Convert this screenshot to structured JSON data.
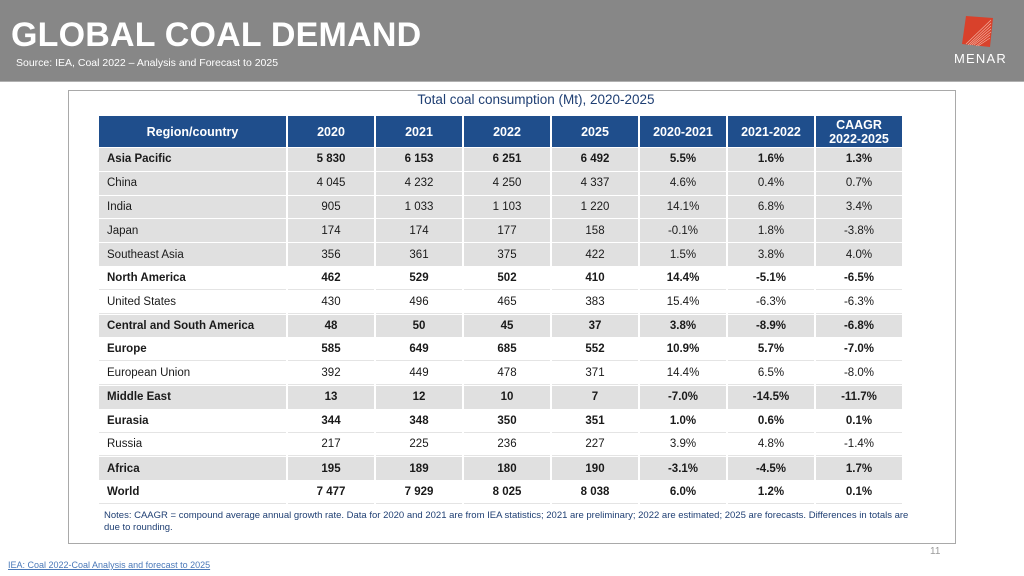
{
  "header": {
    "title": "GLOBAL COAL DEMAND",
    "subtitle": "Source: IEA, Coal 2022 – Analysis and Forecast to 2025",
    "logo_text": "MENAR",
    "logo_color": "#d9412b",
    "background_color": "#878787"
  },
  "table": {
    "title": "Total coal consumption (Mt), 2020-2025",
    "header_color": "#1f4e8c",
    "columns": [
      "Region/country",
      "2020",
      "2021",
      "2022",
      "2025",
      "2020-2021",
      "2021-2022",
      "CAAGR 2022-2025"
    ],
    "column_lines": [
      [
        "Region/country"
      ],
      [
        "2020"
      ],
      [
        "2021"
      ],
      [
        "2022"
      ],
      [
        "2025"
      ],
      [
        "2020-2021"
      ],
      [
        "2021-2022"
      ],
      [
        "CAAGR",
        "2022-2025"
      ]
    ],
    "rows": [
      {
        "cells": [
          "Asia Pacific",
          "5 830",
          "6 153",
          "6 251",
          "6 492",
          "5.5%",
          "1.6%",
          "1.3%"
        ],
        "bold": true,
        "shade": true
      },
      {
        "cells": [
          "China",
          "4 045",
          "4 232",
          "4 250",
          "4 337",
          "4.6%",
          "0.4%",
          "0.7%"
        ],
        "bold": false,
        "shade": true
      },
      {
        "cells": [
          "India",
          "905",
          "1 033",
          "1 103",
          "1 220",
          "14.1%",
          "6.8%",
          "3.4%"
        ],
        "bold": false,
        "shade": true
      },
      {
        "cells": [
          "Japan",
          "174",
          "174",
          "177",
          "158",
          "-0.1%",
          "1.8%",
          "-3.8%"
        ],
        "bold": false,
        "shade": true
      },
      {
        "cells": [
          "Southeast Asia",
          "356",
          "361",
          "375",
          "422",
          "1.5%",
          "3.8%",
          "4.0%"
        ],
        "bold": false,
        "shade": true
      },
      {
        "cells": [
          "North America",
          "462",
          "529",
          "502",
          "410",
          "14.4%",
          "-5.1%",
          "-6.5%"
        ],
        "bold": true,
        "shade": false
      },
      {
        "cells": [
          "United States",
          "430",
          "496",
          "465",
          "383",
          "15.4%",
          "-6.3%",
          "-6.3%"
        ],
        "bold": false,
        "shade": false
      },
      {
        "cells": [
          "Central and South America",
          "48",
          "50",
          "45",
          "37",
          "3.8%",
          "-8.9%",
          "-6.8%"
        ],
        "bold": true,
        "shade": true
      },
      {
        "cells": [
          "Europe",
          "585",
          "649",
          "685",
          "552",
          "10.9%",
          "5.7%",
          "-7.0%"
        ],
        "bold": true,
        "shade": false
      },
      {
        "cells": [
          "European Union",
          "392",
          "449",
          "478",
          "371",
          "14.4%",
          "6.5%",
          "-8.0%"
        ],
        "bold": false,
        "shade": false
      },
      {
        "cells": [
          "Middle East",
          "13",
          "12",
          "10",
          "7",
          "-7.0%",
          "-14.5%",
          "-11.7%"
        ],
        "bold": true,
        "shade": true
      },
      {
        "cells": [
          "Eurasia",
          "344",
          "348",
          "350",
          "351",
          "1.0%",
          "0.6%",
          "0.1%"
        ],
        "bold": true,
        "shade": false
      },
      {
        "cells": [
          "Russia",
          "217",
          "225",
          "236",
          "227",
          "3.9%",
          "4.8%",
          "-1.4%"
        ],
        "bold": false,
        "shade": false
      },
      {
        "cells": [
          "Africa",
          "195",
          "189",
          "180",
          "190",
          "-3.1%",
          "-4.5%",
          "1.7%"
        ],
        "bold": true,
        "shade": true
      },
      {
        "cells": [
          "World",
          "7 477",
          "7 929",
          "8 025",
          "8 038",
          "6.0%",
          "1.2%",
          "0.1%"
        ],
        "bold": true,
        "shade": false
      }
    ],
    "notes": "Notes: CAAGR = compound average annual growth rate. Data for 2020 and 2021 are from IEA statistics; 2021 are preliminary; 2022 are estimated; 2025 are forecasts. Differences in totals are due to rounding."
  },
  "footer": {
    "page_number": "11",
    "source_link": "IEA: Coal 2022-Coal Analysis and forecast to 2025"
  }
}
